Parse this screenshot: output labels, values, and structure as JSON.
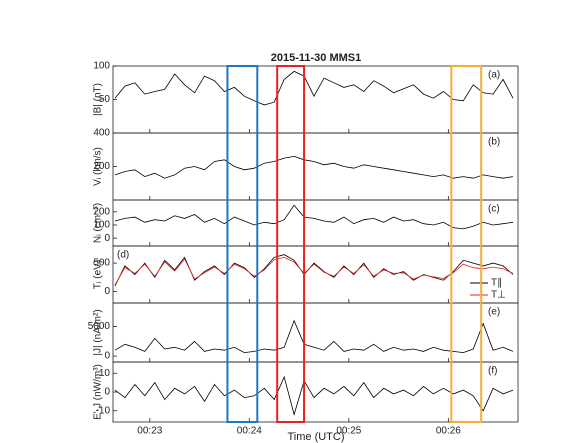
{
  "chart_data": [
    {
      "type": "line",
      "title": "2015-11-30 MMS1",
      "ylabel": "|B| (nT)",
      "panel_label": "(a)",
      "x": [
        22.65,
        22.75,
        22.85,
        22.95,
        23.05,
        23.15,
        23.25,
        23.35,
        23.45,
        23.55,
        23.65,
        23.75,
        23.85,
        23.95,
        24.05,
        24.15,
        24.25,
        24.35,
        24.45,
        24.55,
        24.65,
        24.75,
        24.85,
        24.95,
        25.05,
        25.15,
        25.25,
        25.35,
        25.45,
        25.55,
        25.65,
        25.75,
        25.85,
        25.95,
        26.05,
        26.15,
        26.25,
        26.35,
        26.45,
        26.55,
        26.65
      ],
      "series": [
        {
          "color": "#000000",
          "values": [
            52,
            70,
            75,
            58,
            62,
            65,
            88,
            72,
            60,
            85,
            78,
            62,
            68,
            55,
            48,
            42,
            46,
            80,
            92,
            85,
            55,
            82,
            75,
            68,
            72,
            62,
            78,
            70,
            60,
            66,
            72,
            58,
            52,
            62,
            50,
            48,
            72,
            60,
            58,
            80,
            52
          ]
        }
      ],
      "xlim": [
        22.63,
        26.7
      ],
      "ylim": [
        0,
        100
      ],
      "yticks": [
        50,
        100
      ]
    },
    {
      "type": "line",
      "ylabel": "Vᵢ (km/s)",
      "panel_label": "(b)",
      "x": [
        22.65,
        22.75,
        22.85,
        22.95,
        23.05,
        23.15,
        23.25,
        23.35,
        23.45,
        23.55,
        23.65,
        23.75,
        23.85,
        23.95,
        24.05,
        24.15,
        24.25,
        24.35,
        24.45,
        24.55,
        24.65,
        24.75,
        24.85,
        24.95,
        25.05,
        25.15,
        25.25,
        25.35,
        25.45,
        25.55,
        25.65,
        25.75,
        25.85,
        25.95,
        26.05,
        26.15,
        26.25,
        26.35,
        26.45,
        26.55,
        26.65
      ],
      "series": [
        {
          "color": "#000000",
          "values": [
            150,
            170,
            180,
            140,
            160,
            130,
            150,
            190,
            200,
            180,
            230,
            240,
            200,
            180,
            190,
            220,
            230,
            250,
            260,
            240,
            230,
            210,
            220,
            200,
            190,
            210,
            200,
            190,
            180,
            170,
            160,
            150,
            140,
            150,
            130,
            140,
            130,
            150,
            140,
            130,
            140
          ]
        }
      ],
      "xlim": [
        22.63,
        26.7
      ],
      "ylim": [
        0,
        400
      ],
      "yticks": [
        200,
        400
      ]
    },
    {
      "type": "line",
      "ylabel": "Nᵢ (cm⁻³)",
      "panel_label": "(c)",
      "x": [
        22.65,
        22.75,
        22.85,
        22.95,
        23.05,
        23.15,
        23.25,
        23.35,
        23.45,
        23.55,
        23.65,
        23.75,
        23.85,
        23.95,
        24.05,
        24.15,
        24.25,
        24.35,
        24.45,
        24.55,
        24.65,
        24.75,
        24.85,
        24.95,
        25.05,
        25.15,
        25.25,
        25.35,
        25.45,
        25.55,
        25.65,
        25.75,
        25.85,
        25.95,
        26.05,
        26.15,
        26.25,
        26.35,
        26.45,
        26.55,
        26.65
      ],
      "series": [
        {
          "color": "#000000",
          "values": [
            130,
            150,
            160,
            120,
            140,
            130,
            170,
            150,
            180,
            120,
            150,
            110,
            160,
            130,
            100,
            120,
            110,
            140,
            250,
            160,
            150,
            130,
            120,
            160,
            110,
            140,
            150,
            120,
            160,
            130,
            140,
            110,
            100,
            120,
            80,
            70,
            90,
            120,
            100,
            110,
            120
          ]
        }
      ],
      "xlim": [
        22.63,
        26.7
      ],
      "ylim": [
        -60,
        290
      ],
      "yticks": [
        0,
        100,
        200
      ]
    },
    {
      "type": "line",
      "ylabel": "Tᵢ (eV)",
      "panel_label": "(d)",
      "legend": "lower right",
      "x": [
        22.65,
        22.75,
        22.85,
        22.95,
        23.05,
        23.15,
        23.25,
        23.35,
        23.45,
        23.55,
        23.65,
        23.75,
        23.85,
        23.95,
        24.05,
        24.15,
        24.25,
        24.35,
        24.45,
        24.55,
        24.65,
        24.75,
        24.85,
        24.95,
        25.05,
        25.15,
        25.25,
        25.35,
        25.45,
        25.55,
        25.65,
        25.75,
        25.85,
        25.95,
        26.05,
        26.15,
        26.25,
        26.35,
        26.45,
        26.55,
        26.65
      ],
      "series": [
        {
          "name": "T∥",
          "color": "#000000",
          "values": [
            100,
            450,
            300,
            500,
            250,
            550,
            380,
            600,
            200,
            350,
            450,
            300,
            500,
            420,
            250,
            400,
            600,
            650,
            550,
            300,
            500,
            350,
            250,
            450,
            300,
            500,
            250,
            400,
            300,
            350,
            200,
            300,
            250,
            200,
            350,
            550,
            500,
            450,
            500,
            450,
            300
          ]
        },
        {
          "name": "T⊥",
          "color": "#e8221e",
          "values": [
            120,
            420,
            320,
            480,
            270,
            520,
            360,
            570,
            220,
            330,
            430,
            320,
            480,
            400,
            270,
            380,
            560,
            600,
            520,
            320,
            480,
            340,
            270,
            430,
            320,
            470,
            270,
            380,
            320,
            330,
            220,
            290,
            260,
            230,
            330,
            480,
            420,
            400,
            430,
            400,
            320
          ]
        }
      ],
      "xlim": [
        22.63,
        26.7
      ],
      "ylim": [
        -200,
        800
      ],
      "yticks": [
        0,
        500
      ]
    },
    {
      "type": "line",
      "ylabel": "|J| (nA/m²)",
      "panel_label": "(e)",
      "x": [
        22.65,
        22.75,
        22.85,
        22.95,
        23.05,
        23.15,
        23.25,
        23.35,
        23.45,
        23.55,
        23.65,
        23.75,
        23.85,
        23.95,
        24.05,
        24.15,
        24.25,
        24.35,
        24.45,
        24.55,
        24.65,
        24.75,
        24.85,
        24.95,
        25.05,
        25.15,
        25.25,
        25.35,
        25.45,
        25.55,
        25.65,
        25.75,
        25.85,
        25.95,
        26.05,
        26.15,
        26.25,
        26.35,
        26.45,
        26.55,
        26.65
      ],
      "series": [
        {
          "color": "#000000",
          "values": [
            1000,
            2000,
            1500,
            800,
            3000,
            1200,
            1500,
            1000,
            2500,
            800,
            1200,
            1000,
            1500,
            600,
            800,
            1200,
            1000,
            1500,
            6000,
            2000,
            1500,
            1000,
            2500,
            800,
            1200,
            1000,
            2000,
            800,
            1500,
            1000,
            1200,
            800,
            1500,
            1000,
            800,
            600,
            1200,
            5500,
            1000,
            1500,
            800
          ]
        }
      ],
      "xlim": [
        22.63,
        26.7
      ],
      "ylim": [
        -1000,
        9000
      ],
      "yticks": [
        0,
        5000
      ]
    },
    {
      "type": "line",
      "ylabel": "E'·J (nW/m³)",
      "panel_label": "(f)",
      "xlabel": "Time (UTC)",
      "x": [
        22.65,
        22.75,
        22.85,
        22.95,
        23.05,
        23.15,
        23.25,
        23.35,
        23.45,
        23.55,
        23.65,
        23.75,
        23.85,
        23.95,
        24.05,
        24.15,
        24.25,
        24.35,
        24.45,
        24.55,
        24.65,
        24.75,
        24.85,
        24.95,
        25.05,
        25.15,
        25.25,
        25.35,
        25.45,
        25.55,
        25.65,
        25.75,
        25.85,
        25.95,
        26.05,
        26.15,
        26.25,
        26.35,
        26.45,
        26.55,
        26.65
      ],
      "series": [
        {
          "color": "#000000",
          "values": [
            1,
            -3,
            4,
            -2,
            5,
            -4,
            2,
            -1,
            3,
            -5,
            4,
            -2,
            1,
            -3,
            -2,
            2,
            -4,
            8,
            -12,
            6,
            -3,
            2,
            -1,
            3,
            -2,
            5,
            -3,
            2,
            -1,
            1,
            -2,
            3,
            -1,
            2,
            -1,
            1,
            -2,
            -10,
            2,
            -1,
            1
          ]
        }
      ],
      "xlim": [
        22.63,
        26.7
      ],
      "ylim": [
        -16,
        16
      ],
      "yticks": [
        -10,
        0,
        10
      ],
      "xticks": [
        {
          "value": 23,
          "label": "00:23"
        },
        {
          "value": 24,
          "label": "00:24"
        },
        {
          "value": 25,
          "label": "00:25"
        },
        {
          "value": 26,
          "label": "00:26"
        }
      ]
    }
  ],
  "highlights": [
    {
      "xlim": [
        23.78,
        24.08
      ],
      "color": "#1f77c4"
    },
    {
      "xlim": [
        24.28,
        24.55
      ],
      "color": "#e8221e"
    },
    {
      "xlim": [
        26.03,
        26.33
      ],
      "color": "#f2b134"
    }
  ]
}
